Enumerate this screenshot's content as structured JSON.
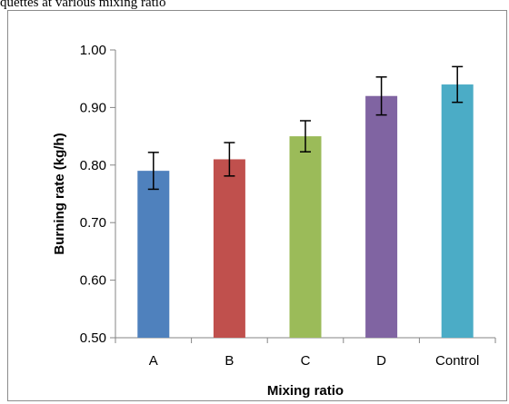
{
  "caption": "quettes at various mixing ratio",
  "chart_data": {
    "type": "bar",
    "title": "",
    "xlabel": "Mixing ratio",
    "ylabel": "Burning rate (kg/h)",
    "categories": [
      "A",
      "B",
      "C",
      "D",
      "Control"
    ],
    "values": [
      0.79,
      0.81,
      0.85,
      0.92,
      0.94
    ],
    "error": [
      0.032,
      0.029,
      0.027,
      0.033,
      0.031
    ],
    "colors": [
      "#4f81bd",
      "#c0504d",
      "#9bbb59",
      "#8064a2",
      "#4bacc6"
    ],
    "ylim": [
      0.5,
      1.0
    ],
    "yticks": [
      0.5,
      0.6,
      0.7,
      0.8,
      0.9,
      1.0
    ],
    "ytick_labels": [
      "0.50",
      "0.60",
      "0.70",
      "0.80",
      "0.90",
      "1.00"
    ],
    "grid": false,
    "legend": "none"
  }
}
